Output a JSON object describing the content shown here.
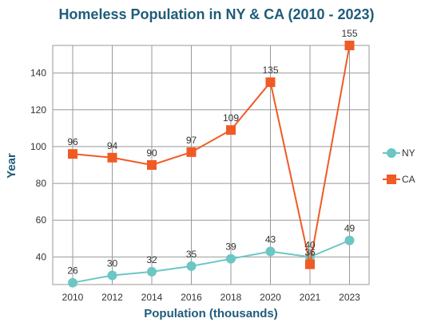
{
  "chart_data": {
    "type": "line",
    "title": "Homeless Population in NY & CA (2010 - 2023)",
    "xlabel": "Population (thousands)",
    "ylabel": "Year",
    "categories": [
      "2010",
      "2012",
      "2014",
      "2016",
      "2018",
      "2020",
      "2021",
      "2023"
    ],
    "ylim": [
      25,
      155
    ],
    "yticks": [
      40,
      60,
      80,
      100,
      120,
      140
    ],
    "grid": true,
    "legend_position": "right",
    "series": [
      {
        "name": "NY",
        "values": [
          26,
          30,
          32,
          35,
          39,
          43,
          40,
          49
        ],
        "color": "#6cc6c4",
        "marker": "circle"
      },
      {
        "name": "CA",
        "values": [
          96,
          94,
          90,
          97,
          109,
          135,
          36,
          155
        ],
        "color": "#f05a24",
        "marker": "square"
      }
    ],
    "title_color": "#1f5c7a"
  }
}
